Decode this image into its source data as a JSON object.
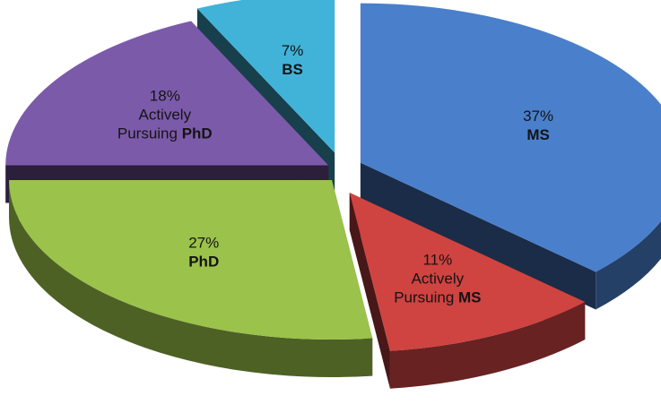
{
  "chart_data": {
    "type": "pie",
    "style": "3d-exploded",
    "slices": [
      {
        "pct_label": "37%",
        "lines": [],
        "bold": "MS",
        "value": 37,
        "color": "#4a7fcb"
      },
      {
        "pct_label": "11%",
        "lines": [
          "Actively"
        ],
        "prefix": "Pursuing ",
        "bold": "MS",
        "value": 11,
        "color": "#cf4341"
      },
      {
        "pct_label": "27%",
        "lines": [],
        "bold": "PhD",
        "value": 27,
        "color": "#9bc24a"
      },
      {
        "pct_label": "18%",
        "lines": [
          "Actively"
        ],
        "prefix": "Pursuing ",
        "bold": "PhD",
        "value": 18,
        "color": "#7c5aaa"
      },
      {
        "pct_label": "7%",
        "lines": [],
        "bold": "BS",
        "value": 7,
        "color": "#41b3d9"
      }
    ]
  }
}
